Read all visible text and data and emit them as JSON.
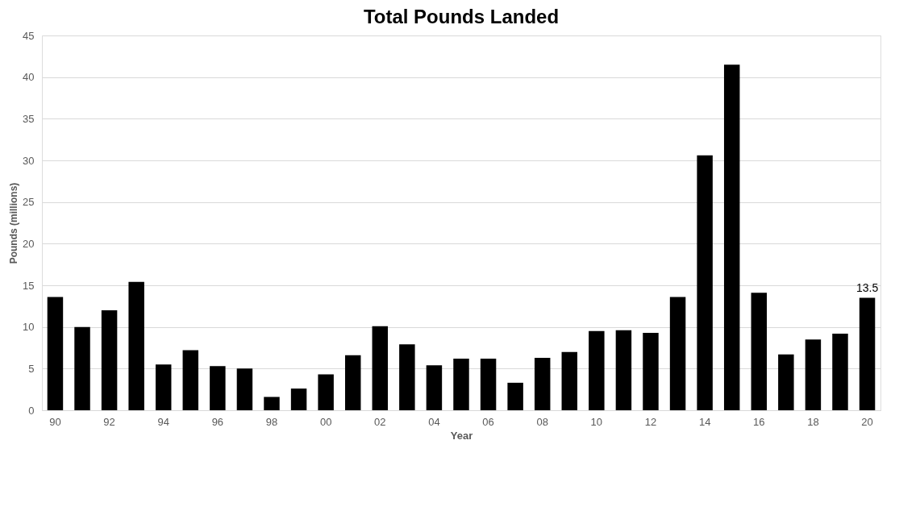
{
  "chart_data": {
    "type": "bar",
    "title": "Total Pounds Landed",
    "xlabel": "Year",
    "ylabel": "Pounds (millions)",
    "categories": [
      "90",
      null,
      "92",
      null,
      "94",
      null,
      "96",
      null,
      "98",
      null,
      "00",
      null,
      "02",
      null,
      "04",
      null,
      "06",
      null,
      "08",
      null,
      "10",
      null,
      "12",
      null,
      "14",
      null,
      "16",
      null,
      "18",
      null,
      "20"
    ],
    "values": [
      13.6,
      10.0,
      12.0,
      15.4,
      5.5,
      7.2,
      5.3,
      5.0,
      1.6,
      2.6,
      4.3,
      6.6,
      10.1,
      7.9,
      5.4,
      6.2,
      6.2,
      3.3,
      6.3,
      7.0,
      9.5,
      9.6,
      9.3,
      13.6,
      30.6,
      41.5,
      14.1,
      6.7,
      8.5,
      9.2,
      13.5
    ],
    "value_labels": [
      null,
      null,
      null,
      null,
      null,
      null,
      null,
      null,
      null,
      null,
      null,
      null,
      null,
      null,
      null,
      null,
      null,
      null,
      null,
      null,
      null,
      null,
      null,
      null,
      null,
      null,
      null,
      null,
      null,
      null,
      "13.5"
    ],
    "color": "#000000",
    "ylim": [
      0,
      45
    ],
    "yticks": [
      0,
      5,
      10,
      15,
      20,
      25,
      30,
      35,
      40,
      45
    ],
    "grid": "y"
  }
}
